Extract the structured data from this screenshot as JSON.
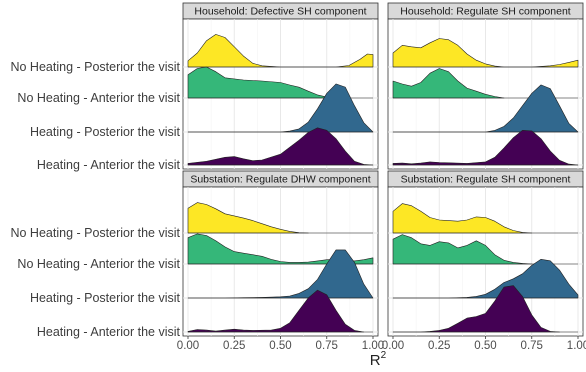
{
  "chart_data": {
    "type": "ridgeline",
    "x_title": "R",
    "x_title_superscript": "2",
    "x_ticks": [
      "0.00",
      "0.25",
      "0.50",
      "0.75",
      "1.00"
    ],
    "xlim": [
      0,
      1
    ],
    "groups": [
      {
        "name": "No Heating - Posterior the visit",
        "color": "#fde725"
      },
      {
        "name": "No Heating - Anterior the visit",
        "color": "#35b779"
      },
      {
        "name": "Heating - Posterior the visit",
        "color": "#31688e"
      },
      {
        "name": "Heating - Anterior the visit",
        "color": "#440154"
      }
    ],
    "panels": [
      {
        "title": "Household: Defective SH component",
        "curves": [
          [
            [
              0,
              0.2
            ],
            [
              0.05,
              0.45
            ],
            [
              0.1,
              0.85
            ],
            [
              0.15,
              1.05
            ],
            [
              0.2,
              0.95
            ],
            [
              0.25,
              0.65
            ],
            [
              0.3,
              0.35
            ],
            [
              0.35,
              0.12
            ],
            [
              0.4,
              0.04
            ],
            [
              0.5,
              0
            ],
            [
              0.8,
              0
            ],
            [
              0.87,
              0.05
            ],
            [
              0.93,
              0.25
            ],
            [
              0.97,
              0.42
            ],
            [
              1,
              0.4
            ]
          ],
          [
            [
              0,
              0.75
            ],
            [
              0.05,
              0.95
            ],
            [
              0.1,
              1.0
            ],
            [
              0.15,
              0.85
            ],
            [
              0.2,
              0.65
            ],
            [
              0.3,
              0.58
            ],
            [
              0.4,
              0.55
            ],
            [
              0.5,
              0.5
            ],
            [
              0.55,
              0.42
            ],
            [
              0.6,
              0.35
            ],
            [
              0.65,
              0.22
            ],
            [
              0.7,
              0.1
            ],
            [
              0.75,
              0.03
            ],
            [
              0.8,
              0
            ]
          ],
          [
            [
              0,
              0
            ],
            [
              0.5,
              0
            ],
            [
              0.55,
              0.03
            ],
            [
              0.6,
              0.1
            ],
            [
              0.65,
              0.32
            ],
            [
              0.7,
              0.75
            ],
            [
              0.75,
              1.25
            ],
            [
              0.8,
              1.55
            ],
            [
              0.85,
              1.45
            ],
            [
              0.9,
              0.85
            ],
            [
              0.95,
              0.3
            ],
            [
              1,
              0
            ]
          ],
          [
            [
              0,
              0.05
            ],
            [
              0.1,
              0.12
            ],
            [
              0.2,
              0.25
            ],
            [
              0.25,
              0.27
            ],
            [
              0.3,
              0.2
            ],
            [
              0.35,
              0.14
            ],
            [
              0.4,
              0.16
            ],
            [
              0.5,
              0.35
            ],
            [
              0.6,
              0.8
            ],
            [
              0.65,
              1.05
            ],
            [
              0.7,
              1.2
            ],
            [
              0.75,
              1.12
            ],
            [
              0.8,
              0.85
            ],
            [
              0.85,
              0.45
            ],
            [
              0.9,
              0.12
            ],
            [
              0.95,
              0.02
            ],
            [
              1,
              0
            ]
          ]
        ]
      },
      {
        "title": "Household: Regulate SH component",
        "curves": [
          [
            [
              0,
              0.45
            ],
            [
              0.05,
              0.7
            ],
            [
              0.1,
              0.65
            ],
            [
              0.15,
              0.62
            ],
            [
              0.2,
              0.78
            ],
            [
              0.25,
              0.92
            ],
            [
              0.3,
              0.88
            ],
            [
              0.35,
              0.7
            ],
            [
              0.4,
              0.42
            ],
            [
              0.45,
              0.22
            ],
            [
              0.5,
              0.1
            ],
            [
              0.55,
              0.03
            ],
            [
              0.6,
              0
            ],
            [
              0.75,
              0
            ],
            [
              0.8,
              0.02
            ],
            [
              0.85,
              0.04
            ],
            [
              0.9,
              0.08
            ],
            [
              0.95,
              0.15
            ],
            [
              1,
              0.22
            ]
          ],
          [
            [
              0,
              0.55
            ],
            [
              0.05,
              0.45
            ],
            [
              0.1,
              0.38
            ],
            [
              0.15,
              0.5
            ],
            [
              0.2,
              0.8
            ],
            [
              0.25,
              0.95
            ],
            [
              0.3,
              0.85
            ],
            [
              0.35,
              0.55
            ],
            [
              0.4,
              0.32
            ],
            [
              0.45,
              0.22
            ],
            [
              0.5,
              0.12
            ],
            [
              0.55,
              0.05
            ],
            [
              0.6,
              0
            ]
          ],
          [
            [
              0,
              0
            ],
            [
              0.5,
              0
            ],
            [
              0.55,
              0.05
            ],
            [
              0.6,
              0.18
            ],
            [
              0.65,
              0.45
            ],
            [
              0.7,
              0.85
            ],
            [
              0.75,
              1.25
            ],
            [
              0.8,
              1.52
            ],
            [
              0.85,
              1.4
            ],
            [
              0.9,
              0.85
            ],
            [
              0.95,
              0.28
            ],
            [
              1,
              0
            ]
          ],
          [
            [
              0,
              0.05
            ],
            [
              0.05,
              0.06
            ],
            [
              0.1,
              0.04
            ],
            [
              0.15,
              0.06
            ],
            [
              0.2,
              0.1
            ],
            [
              0.25,
              0.08
            ],
            [
              0.3,
              0.07
            ],
            [
              0.4,
              0.05
            ],
            [
              0.5,
              0.1
            ],
            [
              0.55,
              0.25
            ],
            [
              0.6,
              0.55
            ],
            [
              0.65,
              0.88
            ],
            [
              0.7,
              1.12
            ],
            [
              0.75,
              1.1
            ],
            [
              0.8,
              0.85
            ],
            [
              0.85,
              0.45
            ],
            [
              0.9,
              0.15
            ],
            [
              0.95,
              0.03
            ],
            [
              1,
              0
            ]
          ]
        ]
      },
      {
        "title": "Substation: Regulate DHW component",
        "curves": [
          [
            [
              0,
              0.8
            ],
            [
              0.05,
              0.98
            ],
            [
              0.1,
              0.92
            ],
            [
              0.15,
              0.78
            ],
            [
              0.2,
              0.62
            ],
            [
              0.25,
              0.55
            ],
            [
              0.3,
              0.48
            ],
            [
              0.35,
              0.4
            ],
            [
              0.4,
              0.3
            ],
            [
              0.45,
              0.2
            ],
            [
              0.5,
              0.12
            ],
            [
              0.55,
              0.05
            ],
            [
              0.6,
              0.01
            ],
            [
              0.65,
              0
            ]
          ],
          [
            [
              0,
              0.85
            ],
            [
              0.05,
              0.97
            ],
            [
              0.1,
              0.92
            ],
            [
              0.15,
              0.75
            ],
            [
              0.2,
              0.55
            ],
            [
              0.25,
              0.4
            ],
            [
              0.3,
              0.35
            ],
            [
              0.35,
              0.3
            ],
            [
              0.4,
              0.25
            ],
            [
              0.45,
              0.15
            ],
            [
              0.5,
              0.08
            ],
            [
              0.55,
              0.05
            ],
            [
              0.6,
              0.05
            ],
            [
              0.65,
              0.06
            ],
            [
              0.7,
              0.1
            ],
            [
              0.75,
              0.14
            ],
            [
              0.8,
              0.14
            ],
            [
              0.85,
              0.12
            ],
            [
              0.9,
              0.1
            ],
            [
              0.95,
              0.14
            ],
            [
              1,
              0.2
            ]
          ],
          [
            [
              0,
              0
            ],
            [
              0.2,
              0
            ],
            [
              0.3,
              0.01
            ],
            [
              0.4,
              0.02
            ],
            [
              0.5,
              0.04
            ],
            [
              0.55,
              0.06
            ],
            [
              0.6,
              0.15
            ],
            [
              0.65,
              0.3
            ],
            [
              0.7,
              0.6
            ],
            [
              0.75,
              1.1
            ],
            [
              0.8,
              1.55
            ],
            [
              0.85,
              1.55
            ],
            [
              0.9,
              1.15
            ],
            [
              0.95,
              0.45
            ],
            [
              1,
              0
            ]
          ],
          [
            [
              0,
              0.02
            ],
            [
              0.05,
              0.08
            ],
            [
              0.1,
              0.06
            ],
            [
              0.15,
              0.03
            ],
            [
              0.2,
              0.06
            ],
            [
              0.25,
              0.09
            ],
            [
              0.3,
              0.06
            ],
            [
              0.35,
              0.05
            ],
            [
              0.45,
              0.06
            ],
            [
              0.5,
              0.12
            ],
            [
              0.55,
              0.3
            ],
            [
              0.6,
              0.7
            ],
            [
              0.65,
              1.1
            ],
            [
              0.7,
              1.35
            ],
            [
              0.75,
              1.2
            ],
            [
              0.8,
              0.7
            ],
            [
              0.85,
              0.25
            ],
            [
              0.9,
              0.05
            ],
            [
              0.95,
              0
            ]
          ]
        ]
      },
      {
        "title": "Substation: Regulate SH component",
        "curves": [
          [
            [
              0,
              0.7
            ],
            [
              0.05,
              0.95
            ],
            [
              0.1,
              0.88
            ],
            [
              0.15,
              0.7
            ],
            [
              0.2,
              0.5
            ],
            [
              0.25,
              0.42
            ],
            [
              0.3,
              0.4
            ],
            [
              0.35,
              0.38
            ],
            [
              0.4,
              0.42
            ],
            [
              0.45,
              0.52
            ],
            [
              0.5,
              0.5
            ],
            [
              0.55,
              0.38
            ],
            [
              0.6,
              0.2
            ],
            [
              0.65,
              0.08
            ],
            [
              0.7,
              0.02
            ],
            [
              0.75,
              0
            ]
          ],
          [
            [
              0,
              0.8
            ],
            [
              0.05,
              0.95
            ],
            [
              0.1,
              0.85
            ],
            [
              0.15,
              0.65
            ],
            [
              0.2,
              0.6
            ],
            [
              0.25,
              0.72
            ],
            [
              0.3,
              0.68
            ],
            [
              0.35,
              0.52
            ],
            [
              0.4,
              0.6
            ],
            [
              0.45,
              0.75
            ],
            [
              0.5,
              0.6
            ],
            [
              0.55,
              0.3
            ],
            [
              0.6,
              0.12
            ],
            [
              0.65,
              0.05
            ],
            [
              0.7,
              0.02
            ],
            [
              0.75,
              0
            ]
          ],
          [
            [
              0,
              0
            ],
            [
              0.3,
              0
            ],
            [
              0.4,
              0.02
            ],
            [
              0.45,
              0.05
            ],
            [
              0.5,
              0.12
            ],
            [
              0.55,
              0.28
            ],
            [
              0.6,
              0.5
            ],
            [
              0.65,
              0.62
            ],
            [
              0.7,
              0.78
            ],
            [
              0.75,
              1.05
            ],
            [
              0.8,
              1.25
            ],
            [
              0.85,
              1.2
            ],
            [
              0.9,
              0.9
            ],
            [
              0.95,
              0.45
            ],
            [
              1,
              0.1
            ]
          ],
          [
            [
              0,
              0
            ],
            [
              0.15,
              0
            ],
            [
              0.2,
              0.02
            ],
            [
              0.25,
              0.05
            ],
            [
              0.3,
              0.12
            ],
            [
              0.35,
              0.28
            ],
            [
              0.4,
              0.45
            ],
            [
              0.45,
              0.5
            ],
            [
              0.5,
              0.6
            ],
            [
              0.55,
              1.0
            ],
            [
              0.6,
              1.45
            ],
            [
              0.65,
              1.5
            ],
            [
              0.7,
              1.15
            ],
            [
              0.75,
              0.55
            ],
            [
              0.8,
              0.15
            ],
            [
              0.85,
              0.02
            ],
            [
              0.9,
              0
            ]
          ]
        ]
      }
    ]
  }
}
